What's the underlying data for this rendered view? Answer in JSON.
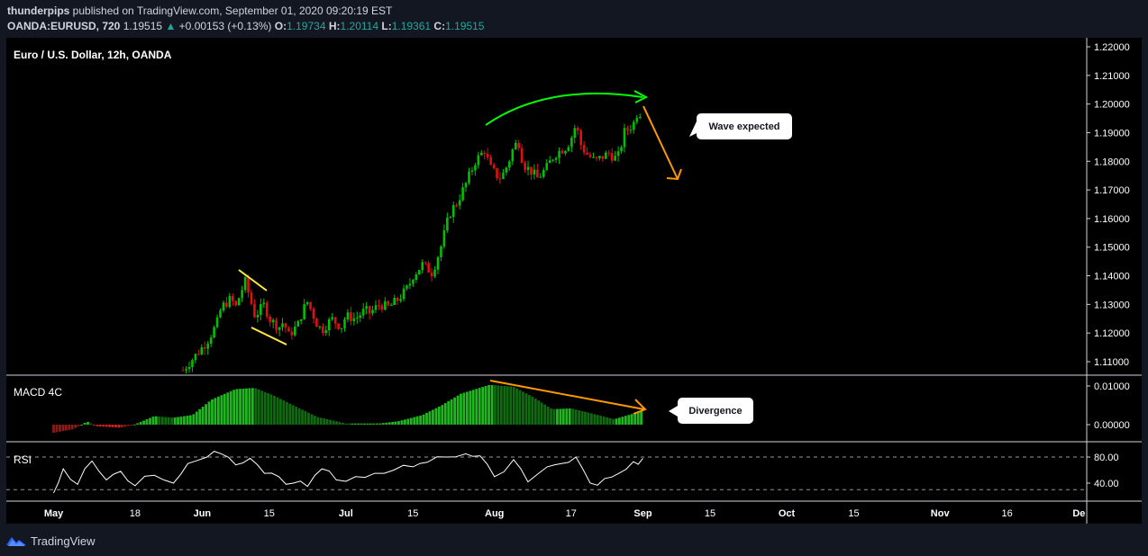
{
  "header": {
    "author": "thunderpips",
    "publish_text": "published on TradingView.com, September 01, 2020 09:20:19 EST",
    "symbol": "OANDA:EURUSD, 720",
    "last": "1.19515",
    "change": "+0.00153 (+0.13%)",
    "o_label": "O:",
    "o": "1.19734",
    "h_label": "H:",
    "h": "1.20114",
    "l_label": "L:",
    "l": "1.19361",
    "c_label": "C:",
    "c": "1.19515"
  },
  "chart": {
    "title": "Euro / U.S. Dollar, 12h, OANDA",
    "macd_label": "MACD 4C",
    "rsi_label": "RSI",
    "annotation_wave": "Wave expected",
    "annotation_divergence": "Divergence"
  },
  "footer": {
    "brand": "TradingView"
  },
  "colors": {
    "background": "#131722",
    "up": "#26a69a",
    "candle_up": "#00c000",
    "candle_down": "#e01010",
    "arrow_green": "#00ff00",
    "arrow_orange": "#ff9800",
    "triangle_yellow": "#ffeb3b"
  },
  "chart_data": [
    {
      "type": "candlestick",
      "title": "Euro / U.S. Dollar, 12h, OANDA",
      "y_ticks": [
        "1.22000",
        "1.21000",
        "1.20000",
        "1.19000",
        "1.18000",
        "1.17000",
        "1.16000",
        "1.15000",
        "1.14000",
        "1.13000",
        "1.12000",
        "1.11000"
      ],
      "ylim": [
        1.105,
        1.222
      ],
      "x_ticks": [
        "May",
        "18",
        "Jun",
        "15",
        "Jul",
        "15",
        "Aug",
        "17",
        "Sep",
        "15",
        "Oct",
        "15",
        "Nov",
        "16",
        "De"
      ],
      "close_path": [
        [
          "2020-05-28",
          1.107
        ],
        [
          "2020-05-30",
          1.111
        ],
        [
          "2020-06-02",
          1.117
        ],
        [
          "2020-06-04",
          1.123
        ],
        [
          "2020-06-05",
          1.129
        ],
        [
          "2020-06-07",
          1.132
        ],
        [
          "2020-06-08",
          1.129
        ],
        [
          "2020-06-09",
          1.134
        ],
        [
          "2020-06-10",
          1.138
        ],
        [
          "2020-06-11",
          1.132
        ],
        [
          "2020-06-12",
          1.126
        ],
        [
          "2020-06-14",
          1.13
        ],
        [
          "2020-06-15",
          1.125
        ],
        [
          "2020-06-17",
          1.122
        ],
        [
          "2020-06-18",
          1.124
        ],
        [
          "2020-06-19",
          1.119
        ],
        [
          "2020-06-21",
          1.123
        ],
        [
          "2020-06-22",
          1.128
        ],
        [
          "2020-06-23",
          1.131
        ],
        [
          "2020-06-25",
          1.123
        ],
        [
          "2020-06-26",
          1.121
        ],
        [
          "2020-06-28",
          1.125
        ],
        [
          "2020-06-30",
          1.122
        ],
        [
          "2020-07-01",
          1.126
        ],
        [
          "2020-07-03",
          1.125
        ],
        [
          "2020-07-05",
          1.128
        ],
        [
          "2020-07-06",
          1.127
        ],
        [
          "2020-07-08",
          1.13
        ],
        [
          "2020-07-10",
          1.129
        ],
        [
          "2020-07-12",
          1.132
        ],
        [
          "2020-07-14",
          1.136
        ],
        [
          "2020-07-15",
          1.14
        ],
        [
          "2020-07-17",
          1.144
        ],
        [
          "2020-07-19",
          1.141
        ],
        [
          "2020-07-20",
          1.146
        ],
        [
          "2020-07-21",
          1.151
        ],
        [
          "2020-07-22",
          1.158
        ],
        [
          "2020-07-23",
          1.163
        ],
        [
          "2020-07-24",
          1.165
        ],
        [
          "2020-07-26",
          1.172
        ],
        [
          "2020-07-27",
          1.176
        ],
        [
          "2020-07-28",
          1.18
        ],
        [
          "2020-07-30",
          1.184
        ],
        [
          "2020-07-31",
          1.178
        ],
        [
          "2020-08-02",
          1.174
        ],
        [
          "2020-08-03",
          1.176
        ],
        [
          "2020-08-04",
          1.18
        ],
        [
          "2020-08-05",
          1.185
        ],
        [
          "2020-08-06",
          1.187
        ],
        [
          "2020-08-07",
          1.179
        ],
        [
          "2020-08-09",
          1.176
        ],
        [
          "2020-08-10",
          1.174
        ],
        [
          "2020-08-12",
          1.178
        ],
        [
          "2020-08-13",
          1.181
        ],
        [
          "2020-08-14",
          1.183
        ],
        [
          "2020-08-16",
          1.185
        ],
        [
          "2020-08-17",
          1.188
        ],
        [
          "2020-08-18",
          1.193
        ],
        [
          "2020-08-19",
          1.186
        ],
        [
          "2020-08-20",
          1.183
        ],
        [
          "2020-08-22",
          1.18
        ],
        [
          "2020-08-24",
          1.182
        ],
        [
          "2020-08-25",
          1.183
        ],
        [
          "2020-08-26",
          1.181
        ],
        [
          "2020-08-27",
          1.182
        ],
        [
          "2020-08-28",
          1.19
        ],
        [
          "2020-08-30",
          1.193
        ],
        [
          "2020-08-31",
          1.198
        ],
        [
          "2020-09-01",
          1.1952
        ]
      ]
    },
    {
      "type": "bar",
      "title": "MACD 4C",
      "y_ticks": [
        "0.01000",
        "0.00000"
      ],
      "ylim": [
        -0.0025,
        0.0115
      ],
      "histogram": [
        [
          "2020-05-01",
          -0.0021
        ],
        [
          "2020-05-05",
          -0.0012
        ],
        [
          "2020-05-08",
          0.0008
        ],
        [
          "2020-05-10",
          -0.0004
        ],
        [
          "2020-05-15",
          -0.0008
        ],
        [
          "2020-05-18",
          0.0001
        ],
        [
          "2020-05-22",
          0.0022
        ],
        [
          "2020-05-26",
          0.0018
        ],
        [
          "2020-05-30",
          0.0025
        ],
        [
          "2020-06-03",
          0.0065
        ],
        [
          "2020-06-08",
          0.0092
        ],
        [
          "2020-06-12",
          0.0095
        ],
        [
          "2020-06-16",
          0.0075
        ],
        [
          "2020-06-20",
          0.005
        ],
        [
          "2020-06-25",
          0.002
        ],
        [
          "2020-07-01",
          0.0003
        ],
        [
          "2020-07-08",
          0.0003
        ],
        [
          "2020-07-12",
          0.0009
        ],
        [
          "2020-07-17",
          0.0025
        ],
        [
          "2020-07-21",
          0.005
        ],
        [
          "2020-07-25",
          0.008
        ],
        [
          "2020-07-31",
          0.0103
        ],
        [
          "2020-08-05",
          0.0098
        ],
        [
          "2020-08-09",
          0.0072
        ],
        [
          "2020-08-13",
          0.004
        ],
        [
          "2020-08-17",
          0.0042
        ],
        [
          "2020-08-21",
          0.003
        ],
        [
          "2020-08-26",
          0.0014
        ],
        [
          "2020-09-01",
          0.0036
        ]
      ]
    },
    {
      "type": "line",
      "title": "RSI",
      "y_ticks": [
        "80.00",
        "40.00"
      ],
      "ylim": [
        17,
        93
      ],
      "guides": [
        80,
        30
      ],
      "x": [
        "2020-05-01",
        "2020-05-03",
        "2020-05-06",
        "2020-05-09",
        "2020-05-12",
        "2020-05-15",
        "2020-05-18",
        "2020-05-22",
        "2020-05-26",
        "2020-05-29",
        "2020-06-02",
        "2020-06-05",
        "2020-06-08",
        "2020-06-11",
        "2020-06-14",
        "2020-06-17",
        "2020-06-20",
        "2020-06-23",
        "2020-06-26",
        "2020-06-29",
        "2020-07-03",
        "2020-07-07",
        "2020-07-11",
        "2020-07-15",
        "2020-07-18",
        "2020-07-22",
        "2020-07-26",
        "2020-07-29",
        "2020-08-01",
        "2020-08-05",
        "2020-08-08",
        "2020-08-12",
        "2020-08-15",
        "2020-08-18",
        "2020-08-21",
        "2020-08-24",
        "2020-08-27",
        "2020-08-30",
        "2020-09-01"
      ],
      "values": [
        25,
        62,
        38,
        74,
        45,
        58,
        36,
        52,
        40,
        70,
        80,
        85,
        68,
        78,
        55,
        50,
        40,
        35,
        62,
        45,
        50,
        55,
        60,
        65,
        72,
        80,
        85,
        82,
        50,
        76,
        42,
        65,
        70,
        80,
        40,
        47,
        55,
        73,
        78
      ]
    }
  ]
}
